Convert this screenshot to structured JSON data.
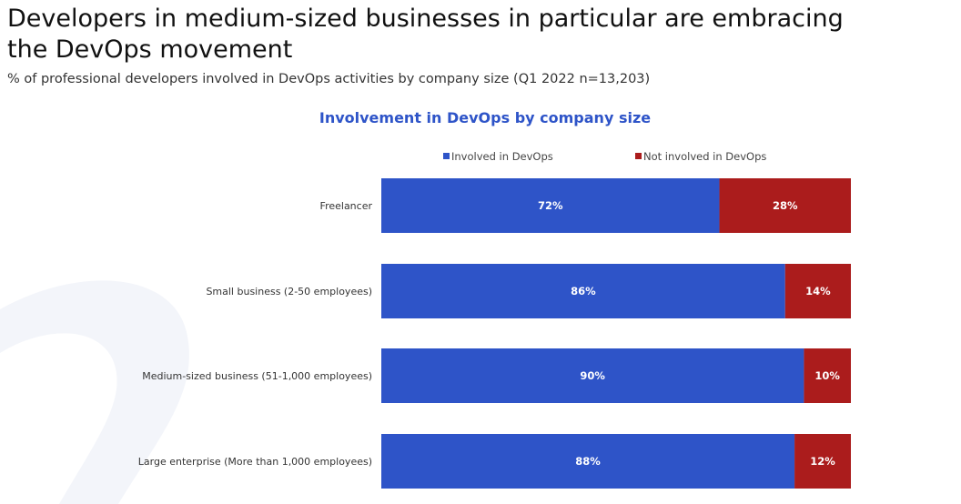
{
  "header": {
    "title_line1": "Developers in medium-sized businesses in particular are embracing",
    "title_line2": "the DevOps movement",
    "subtitle": "% of professional developers involved in DevOps activities by company size (Q1 2022 n=13,203)"
  },
  "chart_data": {
    "type": "bar",
    "orientation": "horizontal",
    "stacked": true,
    "title": "Involvement in DevOps by company size",
    "categories": [
      "Freelancer",
      "Small business (2-50 employees)",
      "Medium-sized business (51-1,000 employees)",
      "Large enterprise (More than 1,000 employees)"
    ],
    "series": [
      {
        "name": "Involved in DevOps",
        "values": [
          72,
          86,
          90,
          88
        ],
        "labels": [
          "72%",
          "86%",
          "90%",
          "88%"
        ],
        "color": "#2e54c8"
      },
      {
        "name": "Not involved in DevOps",
        "values": [
          28,
          14,
          10,
          12
        ],
        "labels": [
          "28%",
          "14%",
          "10%",
          "12%"
        ],
        "color": "#ab1c1c"
      }
    ],
    "xlim": [
      0,
      100
    ],
    "legend_position": "top",
    "grid": false,
    "title_color": "#2e54c8"
  }
}
